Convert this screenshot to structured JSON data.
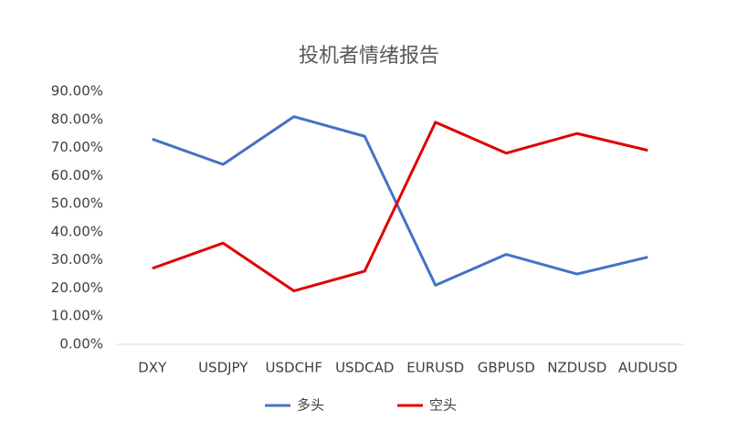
{
  "chart_data": {
    "type": "line",
    "title": "投机者情绪报告",
    "categories": [
      "DXY",
      "USDJPY",
      "USDCHF",
      "USDCAD",
      "EURUSD",
      "GBPUSD",
      "NZDUSD",
      "AUDUSD"
    ],
    "series": [
      {
        "name": "多头",
        "color": "#4472c4",
        "values": [
          73,
          64,
          81,
          74,
          21,
          32,
          25,
          31
        ]
      },
      {
        "name": "空头",
        "color": "#e00000",
        "values": [
          27,
          36,
          19,
          26,
          79,
          68,
          75,
          69
        ]
      }
    ],
    "ylim": [
      0,
      90
    ],
    "yticks": [
      {
        "value": 0,
        "label": "0.00%"
      },
      {
        "value": 10,
        "label": "10.00%"
      },
      {
        "value": 20,
        "label": "20.00%"
      },
      {
        "value": 30,
        "label": "30.00%"
      },
      {
        "value": 40,
        "label": "40.00%"
      },
      {
        "value": 50,
        "label": "50.00%"
      },
      {
        "value": 60,
        "label": "60.00%"
      },
      {
        "value": 70,
        "label": "70.00%"
      },
      {
        "value": 80,
        "label": "80.00%"
      },
      {
        "value": 90,
        "label": "90.00%"
      }
    ],
    "grid": false,
    "legend": "bottom"
  }
}
